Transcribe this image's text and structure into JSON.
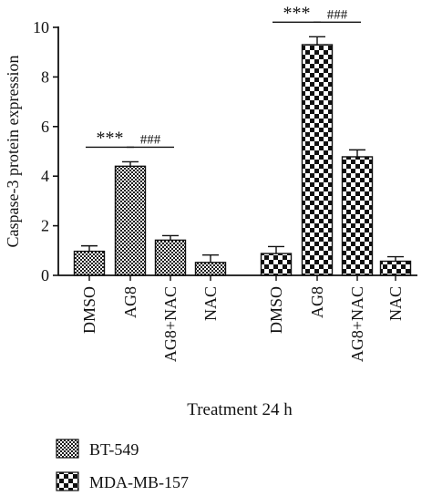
{
  "chart_data": {
    "type": "bar",
    "ylabel": "Caspase-3 protein expression",
    "xlabel": "Treatment 24 h",
    "ylim": [
      0,
      10
    ],
    "yticks": [
      0,
      2,
      4,
      6,
      8,
      10
    ],
    "grid": false,
    "legend_position": "bottom-left",
    "groups": [
      {
        "name": "BT-549",
        "pattern": "fine-checker",
        "categories": [
          "DMSO",
          "AG8",
          "AG8+NAC",
          "NAC"
        ],
        "values": [
          0.97,
          4.4,
          1.42,
          0.52
        ],
        "errors": [
          0.22,
          0.18,
          0.18,
          0.3
        ]
      },
      {
        "name": "MDA-MB-157",
        "pattern": "coarse-checker",
        "categories": [
          "DMSO",
          "AG8",
          "AG8+NAC",
          "NAC"
        ],
        "values": [
          0.88,
          9.3,
          4.78,
          0.57
        ],
        "errors": [
          0.28,
          0.32,
          0.28,
          0.18
        ]
      }
    ],
    "annotations": [
      {
        "group": 0,
        "from": 0,
        "to": 1,
        "text": "***"
      },
      {
        "group": 0,
        "from": 1,
        "to": 2,
        "text": "###"
      },
      {
        "group": 1,
        "from": 0,
        "to": 1,
        "text": "***"
      },
      {
        "group": 1,
        "from": 1,
        "to": 2,
        "text": "###"
      }
    ]
  },
  "colors": {
    "ink": "#111111",
    "background": "#ffffff"
  }
}
